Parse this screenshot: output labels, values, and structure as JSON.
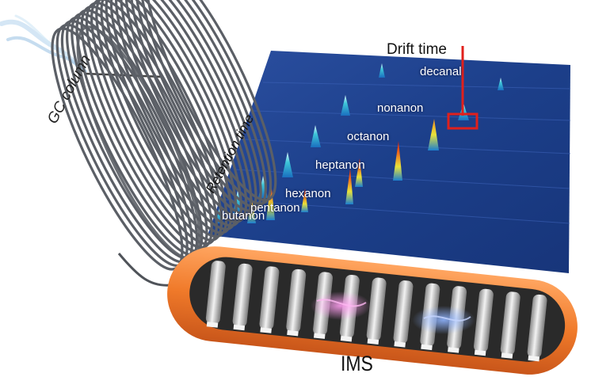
{
  "labels": {
    "gc_column": "GC column",
    "retention_time": "Retention time",
    "drift_time": "Drift time",
    "ims": "IMS"
  },
  "compounds": [
    "decanal",
    "nonanon",
    "octanon",
    "heptanon",
    "hexanon",
    "pentanon",
    "butanon"
  ],
  "colors": {
    "plot_background": "#1c3f8a",
    "coil": "#5b5f66",
    "ims_tube": "#f07a2a",
    "highlight_box": "#e0201c",
    "smoke": "#9ec4e4"
  },
  "icons": [
    "smoke-icon",
    "coil-icon",
    "drift-tube-icon",
    "peak-icon"
  ]
}
